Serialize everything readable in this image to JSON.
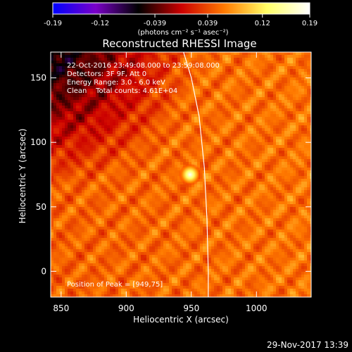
{
  "chart_data": {
    "type": "heatmap",
    "title": "Reconstructed RHESSI Image",
    "xlabel": "Heliocentric X (arcsec)",
    "ylabel": "Heliocentric Y (arcsec)",
    "xlim": [
      842,
      1042
    ],
    "ylim": [
      -20,
      170
    ],
    "xticks": [
      "850",
      "900",
      "950",
      "1000"
    ],
    "xtick_values": [
      850,
      900,
      950,
      1000
    ],
    "yticks": [
      "0",
      "50",
      "100",
      "150"
    ],
    "ytick_values": [
      0,
      50,
      100,
      150
    ],
    "colorbar": {
      "min": -0.19,
      "max": 0.19,
      "tick_labels": [
        "-0.19",
        "-0.12",
        "-0.039",
        "0.039",
        "0.12",
        "0.19"
      ],
      "tick_values": [
        -0.19,
        -0.12,
        -0.039,
        0.039,
        0.12,
        0.19
      ],
      "units_label": "(photons cm⁻² s⁻¹ asec⁻²)",
      "colors": [
        "#0000ff",
        "#7a00c8",
        "#000000",
        "#cc0000",
        "#ff7a00",
        "#ffff66",
        "#ffffff"
      ]
    },
    "annotations": [
      "22-Oct-2016 23:49:08.000 to 23:59:08.000",
      "Detectors: 3F 9F, Att 0",
      "Energy Range: 3.0 - 6.0 keV",
      "Clean    Total counts: 4.61E+04"
    ],
    "peak": {
      "label": "Position of Peak = [949,75]",
      "x": 949,
      "y": 75,
      "value": 0.19
    },
    "background_level": 0.05,
    "limb_curve": [
      [
        963,
        -20
      ],
      [
        963,
        0
      ],
      [
        962,
        40
      ],
      [
        960,
        80
      ],
      [
        956,
        120
      ],
      [
        950,
        150
      ],
      [
        944,
        170
      ]
    ]
  },
  "footer": {
    "timestamp": "29-Nov-2017 13:39"
  }
}
